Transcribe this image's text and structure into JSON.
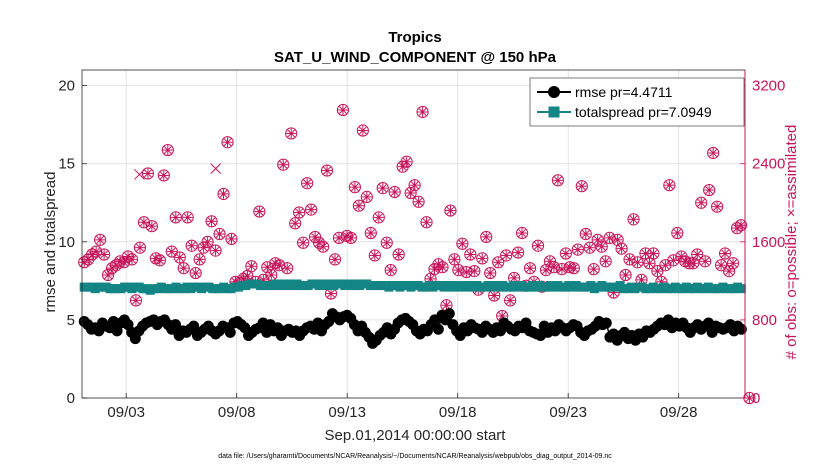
{
  "chart_data": {
    "type": "scatter",
    "title_line1": "Tropics",
    "title_line2": "SAT_U_WIND_COMPONENT @ 150 hPa",
    "xlabel": "Sep.01,2014 00:00:00 start",
    "ylabel_left": "rmse and totalspread",
    "ylabel_right": "# of obs: o=possible; ×=assimilated",
    "footnote": "data file: /Users/gharamti/Documents/NCAR/Reanalysis/~/Documents/NCAR/Reanalysis/webpub/obs_diag_output_2014-09.nc",
    "x_range_days": [
      0.0,
      30.0
    ],
    "x_ticks": [
      {
        "day": 2,
        "label": "09/03"
      },
      {
        "day": 7,
        "label": "09/08"
      },
      {
        "day": 12,
        "label": "09/13"
      },
      {
        "day": 17,
        "label": "09/18"
      },
      {
        "day": 22,
        "label": "09/23"
      },
      {
        "day": 27,
        "label": "09/28"
      }
    ],
    "left_axis": {
      "range": [
        0,
        21
      ],
      "ticks": [
        0,
        5,
        10,
        15,
        20
      ]
    },
    "right_axis": {
      "range": [
        0,
        3360
      ],
      "ticks": [
        0,
        800,
        1600,
        2400,
        3200
      ],
      "color": "#c8145a"
    },
    "legend": {
      "location": "top-right",
      "entries": [
        {
          "label": "rmse pr=4.4711",
          "color": "#000000",
          "marker": "circle"
        },
        {
          "label": "totalspread pr=7.0949",
          "color": "#138585",
          "marker": "square"
        }
      ]
    },
    "time_step_days": 0.25,
    "series": [
      {
        "name": "rmse",
        "axis": "left",
        "color": "#000000",
        "values": [
          4.9,
          4.7,
          4.4,
          4.5,
          4.3,
          4.8,
          4.6,
          4.5,
          4.9,
          4.3,
          4.8,
          5.0,
          4.7,
          4.2,
          3.8,
          4.3,
          4.6,
          4.8,
          4.9,
          5.0,
          4.7,
          4.9,
          5.0,
          4.7,
          4.4,
          4.7,
          4.0,
          4.3,
          4.2,
          4.4,
          4.6,
          4.0,
          4.2,
          4.4,
          4.6,
          4.3,
          4.1,
          4.3,
          4.6,
          4.5,
          4.2,
          4.8,
          4.9,
          4.7,
          4.5,
          4.0,
          4.2,
          4.4,
          4.5,
          4.8,
          4.2,
          4.7,
          4.3,
          4.5,
          4.0,
          4.3,
          4.4,
          4.2,
          4.3,
          4.0,
          4.3,
          4.5,
          4.6,
          4.4,
          4.8,
          4.3,
          4.7,
          4.9,
          5.4,
          5.2,
          5.0,
          5.2,
          5.3,
          5.1,
          4.7,
          4.3,
          4.6,
          4.2,
          3.9,
          3.5,
          3.7,
          4.0,
          4.2,
          4.5,
          4.1,
          4.4,
          4.8,
          5.0,
          5.1,
          4.9,
          4.7,
          4.3,
          4.1,
          4.4,
          4.3,
          4.7,
          5.0,
          4.4,
          5.3,
          5.0,
          5.4,
          4.7,
          4.3,
          4.0,
          4.5,
          4.3,
          4.7,
          4.5,
          4.4,
          4.2,
          4.6,
          4.4,
          4.2,
          4.5,
          4.3,
          4.8,
          4.6,
          4.4,
          4.3,
          4.6,
          4.5,
          4.8,
          4.3,
          4.2,
          4.1,
          4.0,
          4.6,
          4.2,
          4.5,
          4.3,
          4.7,
          4.5,
          4.3,
          4.5,
          4.7,
          4.6,
          4.2,
          4.0,
          4.3,
          4.4,
          4.6,
          4.9,
          4.7,
          4.8,
          3.9,
          4.1,
          3.7,
          4.0,
          4.2,
          3.8,
          4.0,
          3.7,
          4.1,
          3.9,
          4.3,
          4.2,
          4.4,
          4.6,
          4.8,
          4.7,
          5.0,
          4.5,
          4.8,
          4.6,
          4.8,
          4.5,
          4.2,
          4.5,
          4.7,
          4.4,
          4.6,
          4.8,
          4.2,
          4.6,
          4.5,
          4.4,
          4.5,
          4.7,
          4.3,
          4.6,
          4.4
        ]
      },
      {
        "name": "totalspread",
        "axis": "left",
        "color": "#138585",
        "values": [
          7.1,
          7.1,
          7.1,
          7.0,
          7.1,
          7.1,
          7.1,
          7.0,
          7.0,
          7.0,
          7.0,
          7.1,
          7.1,
          7.0,
          7.1,
          7.1,
          7.0,
          7.0,
          6.9,
          7.0,
          7.0,
          7.1,
          7.0,
          7.0,
          7.0,
          7.1,
          7.0,
          7.0,
          7.1,
          7.0,
          7.1,
          7.1,
          7.0,
          7.1,
          7.1,
          7.0,
          7.0,
          7.0,
          7.1,
          7.0,
          7.0,
          7.1,
          7.1,
          7.2,
          7.2,
          7.3,
          7.3,
          7.3,
          7.2,
          7.2,
          7.2,
          7.2,
          7.3,
          7.2,
          7.3,
          7.2,
          7.3,
          7.2,
          7.3,
          7.2,
          7.2,
          7.2,
          7.3,
          7.3,
          7.2,
          7.3,
          7.2,
          7.3,
          7.2,
          7.3,
          7.3,
          7.2,
          7.3,
          7.2,
          7.3,
          7.2,
          7.3,
          7.3,
          7.2,
          7.2,
          7.2,
          7.2,
          7.2,
          7.1,
          7.2,
          7.2,
          7.1,
          7.2,
          7.2,
          7.1,
          7.2,
          7.2,
          7.1,
          7.1,
          7.2,
          7.1,
          7.2,
          7.2,
          7.1,
          7.2,
          7.1,
          7.2,
          7.1,
          7.2,
          7.1,
          7.2,
          7.1,
          7.2,
          7.1,
          7.1,
          7.2,
          7.1,
          7.2,
          7.1,
          7.2,
          7.1,
          7.1,
          7.2,
          7.1,
          7.2,
          7.1,
          7.1,
          7.2,
          7.1,
          7.2,
          7.1,
          7.1,
          7.2,
          7.1,
          7.2,
          7.1,
          7.1,
          7.2,
          7.1,
          7.2,
          7.1,
          7.1,
          7.1,
          7.2,
          7.0,
          7.1,
          7.2,
          7.1,
          7.1,
          7.1,
          7.1,
          7.2,
          7.0,
          7.0,
          7.1,
          7.0,
          7.1,
          7.1,
          7.0,
          7.0,
          7.1,
          7.0,
          7.0,
          7.1,
          7.0,
          7.0,
          7.1,
          7.0,
          7.0,
          7.1,
          7.0,
          7.0,
          7.1,
          7.0,
          7.0,
          7.1,
          7.0,
          7.0,
          7.0,
          7.1,
          7.0,
          7.0,
          7.0,
          7.1,
          7.0
        ]
      },
      {
        "name": "obs_possible",
        "axis": "right",
        "color": "#c8145a",
        "marker": "circle",
        "values": [
          1390,
          1420,
          1470,
          1500,
          1620,
          1470,
          1260,
          1330,
          1360,
          1400,
          1390,
          1450,
          1420,
          1000,
          1540,
          1800,
          2300,
          1760,
          1430,
          1410,
          2280,
          2540,
          1500,
          1850,
          1440,
          1330,
          1850,
          1560,
          1280,
          1420,
          1540,
          1600,
          1810,
          1510,
          1680,
          2090,
          2620,
          1630,
          1190,
          1180,
          1220,
          1250,
          1350,
          1190,
          1910,
          1210,
          1340,
          1260,
          1380,
          1360,
          2390,
          1330,
          2710,
          1790,
          1900,
          1590,
          2200,
          1930,
          1650,
          1590,
          1550,
          2330,
          1070,
          1420,
          1640,
          2950,
          1660,
          1640,
          2160,
          1970,
          2740,
          2060,
          1690,
          1460,
          1850,
          2150,
          1590,
          1310,
          2110,
          1470,
          2370,
          2420,
          2100,
          2180,
          2010,
          2930,
          1800,
          1220,
          1320,
          1370,
          1340,
          950,
          1920,
          1420,
          1310,
          1580,
          1290,
          1470,
          1300,
          1110,
          1430,
          1650,
          1280,
          1050,
          1390,
          840,
          1460,
          1000,
          1230,
          1490,
          1690,
          1150,
          1330,
          1190,
          1560,
          1140,
          1310,
          1400,
          1340,
          2230,
          1320,
          1480,
          1340,
          1330,
          1520,
          2170,
          1680,
          1540,
          1320,
          1620,
          1550,
          1400,
          1640,
          1080,
          1620,
          1530,
          1260,
          1420,
          1830,
          1390,
          1210,
          1480,
          1380,
          1480,
          1300,
          1190,
          1360,
          2180,
          1410,
          1690,
          1450,
          1400,
          1380,
          1380,
          1470,
          2000,
          1400,
          2130,
          2510,
          1960,
          1360,
          1480,
          1300,
          1380,
          1740,
          1770
        ],
        "day_values": [
          {
            "day": 30.2,
            "value": 0
          }
        ]
      },
      {
        "name": "obs_assimilated",
        "axis": "right",
        "color": "#c8145a",
        "marker": "x",
        "values": [
          {
            "day": 2.6,
            "value": 2290
          },
          {
            "day": 6.05,
            "value": 2350
          }
        ],
        "note": "assimilated counts coincide with possible counts (x drawn inside each circle)"
      }
    ]
  }
}
